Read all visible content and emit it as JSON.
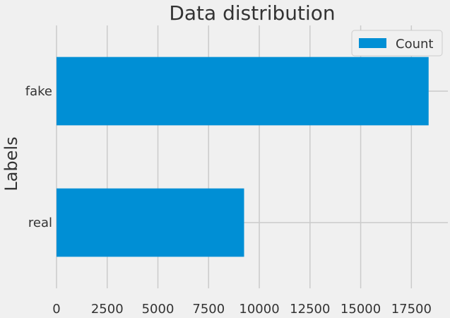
{
  "chart_data": {
    "type": "bar",
    "orientation": "horizontal",
    "title": "Data distribution",
    "xlabel": "",
    "ylabel": "Labels",
    "categories": [
      "fake",
      "real"
    ],
    "series": [
      {
        "name": "Count",
        "values": [
          18350,
          9250
        ],
        "color": "#008fd5"
      }
    ],
    "xlim": [
      0,
      19300
    ],
    "xticks": [
      0,
      2500,
      5000,
      7500,
      10000,
      12500,
      15000,
      17500
    ],
    "grid": true,
    "legend": "top-right"
  }
}
